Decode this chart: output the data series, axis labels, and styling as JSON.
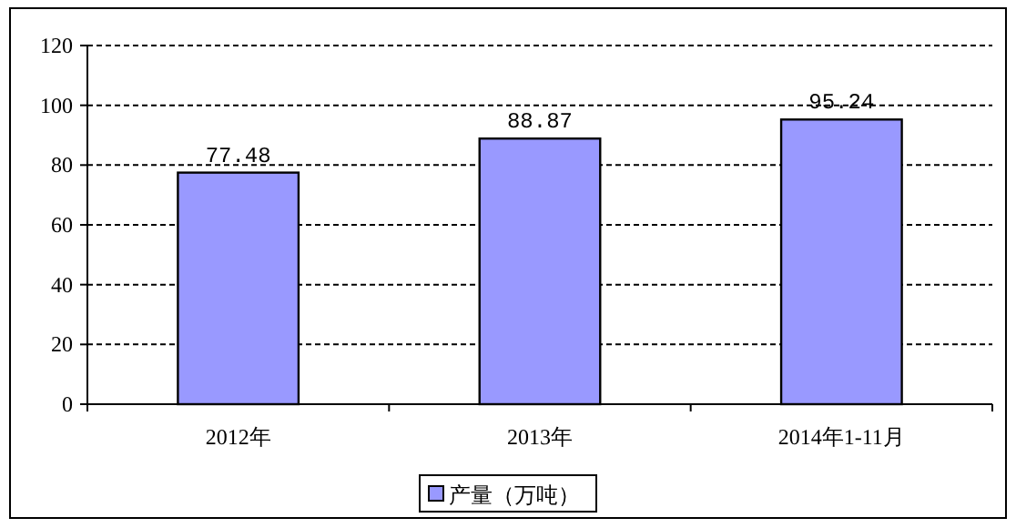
{
  "chart_data": {
    "type": "bar",
    "categories": [
      "2012年",
      "2013年",
      "2014年1-11月"
    ],
    "series": [
      {
        "name": "产量（万吨）",
        "color": "#9999ff",
        "values": [
          77.48,
          88.87,
          95.24
        ]
      }
    ],
    "ylim": [
      0,
      120
    ],
    "yticks": [
      0,
      20,
      40,
      60,
      80,
      100,
      120
    ],
    "grid": "y",
    "legend": "bottom",
    "data_labels": true
  }
}
